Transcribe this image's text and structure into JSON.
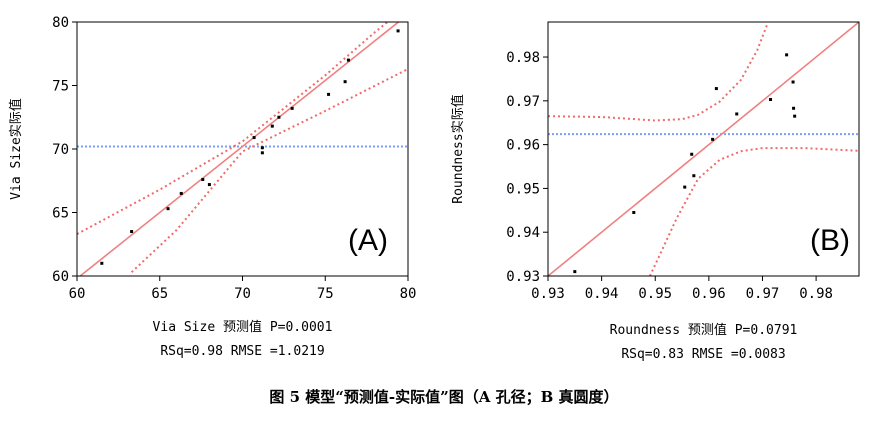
{
  "figure": {
    "caption": "图 5 模型“预测值-实际值”图（A 孔径；B 真圆度）"
  },
  "colors": {
    "fit_line": "#f08080",
    "confidence": "#f06a6a",
    "mean_line": "#7a9ef5",
    "points": "#000000",
    "frame": "#000000"
  },
  "chart_data": [
    {
      "type": "scatter",
      "panel_label": "(A)",
      "xlabel": "Via Size 预测值 P=0.0001",
      "ylabel": "Via Size实际值",
      "stats": "RSq=0.98 RMSE =1.0219",
      "xlim": [
        60,
        80
      ],
      "ylim": [
        60,
        80
      ],
      "xticks": [
        60,
        65,
        70,
        75,
        80
      ],
      "yticks": [
        60,
        65,
        70,
        75,
        80
      ],
      "grid": false,
      "mean_y": 70.2,
      "fit_line": [
        [
          60,
          59.8
        ],
        [
          80,
          80.6
        ]
      ],
      "confidence_upper": [
        [
          60,
          63.3
        ],
        [
          65,
          66.8
        ],
        [
          70,
          70.6
        ],
        [
          75,
          75.8
        ],
        [
          78,
          79.2
        ],
        [
          80,
          81.3
        ]
      ],
      "confidence_lower": [
        [
          63.3,
          60.3
        ],
        [
          66,
          63.6
        ],
        [
          70,
          69.8
        ],
        [
          75,
          73.0
        ],
        [
          80,
          76.3
        ]
      ],
      "points": [
        [
          61.5,
          61.0
        ],
        [
          63.3,
          63.5
        ],
        [
          65.5,
          65.3
        ],
        [
          66.3,
          66.5
        ],
        [
          67.6,
          67.6
        ],
        [
          68.0,
          67.2
        ],
        [
          70.7,
          70.9
        ],
        [
          71.2,
          70.1
        ],
        [
          71.2,
          69.7
        ],
        [
          71.8,
          71.8
        ],
        [
          72.2,
          72.5
        ],
        [
          73.0,
          73.2
        ],
        [
          75.2,
          74.3
        ],
        [
          76.2,
          75.3
        ],
        [
          76.4,
          77.0
        ],
        [
          79.4,
          79.3
        ]
      ]
    },
    {
      "type": "scatter",
      "panel_label": "(B)",
      "xlabel": "Roundness 预测值 P=0.0791",
      "ylabel": "Roundness实际值",
      "stats": "RSq=0.83 RMSE =0.0083",
      "xlim": [
        0.93,
        0.988
      ],
      "ylim": [
        0.93,
        0.988
      ],
      "xticks": [
        0.93,
        0.94,
        0.95,
        0.96,
        0.97,
        0.98
      ],
      "yticks": [
        0.93,
        0.94,
        0.95,
        0.96,
        0.97,
        0.98
      ],
      "grid": false,
      "mean_y": 0.9624,
      "fit_line": [
        [
          0.93,
          0.93
        ],
        [
          0.988,
          0.988
        ]
      ],
      "confidence_upper": [
        [
          0.93,
          0.9665
        ],
        [
          0.94,
          0.9663
        ],
        [
          0.95,
          0.9655
        ],
        [
          0.955,
          0.9658
        ],
        [
          0.958,
          0.9668
        ],
        [
          0.962,
          0.9698
        ],
        [
          0.966,
          0.9748
        ],
        [
          0.969,
          0.9815
        ],
        [
          0.971,
          0.9878
        ]
      ],
      "confidence_lower": [
        [
          0.949,
          0.93
        ],
        [
          0.951,
          0.9352
        ],
        [
          0.954,
          0.9432
        ],
        [
          0.958,
          0.9522
        ],
        [
          0.962,
          0.9565
        ],
        [
          0.966,
          0.9585
        ],
        [
          0.97,
          0.9592
        ],
        [
          0.978,
          0.9592
        ],
        [
          0.988,
          0.9586
        ]
      ],
      "points": [
        [
          0.935,
          0.931
        ],
        [
          0.946,
          0.9445
        ],
        [
          0.9555,
          0.9503
        ],
        [
          0.9568,
          0.9578
        ],
        [
          0.9572,
          0.9529
        ],
        [
          0.9607,
          0.9612
        ],
        [
          0.9614,
          0.9728
        ],
        [
          0.9652,
          0.967
        ],
        [
          0.9715,
          0.9703
        ],
        [
          0.9745,
          0.9805
        ],
        [
          0.9757,
          0.9743
        ],
        [
          0.9758,
          0.9683
        ],
        [
          0.976,
          0.9665
        ]
      ]
    }
  ]
}
